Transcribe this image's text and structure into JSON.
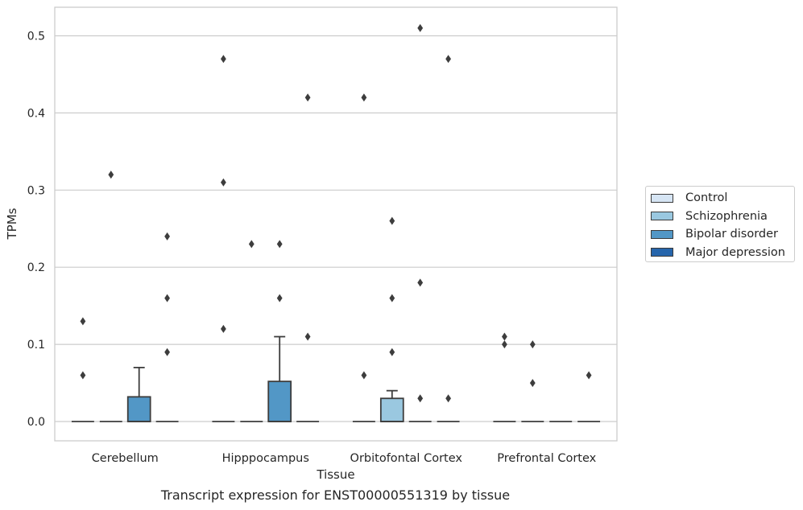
{
  "caption": "Transcript expression for ENST00000551319 by tissue",
  "legend": {
    "items": [
      {
        "label": "Control",
        "color": "#d6e5f4"
      },
      {
        "label": "Schizophrenia",
        "color": "#9ac8e0"
      },
      {
        "label": "Bipolar disorder",
        "color": "#5297c6"
      },
      {
        "label": "Major depression",
        "color": "#2665ab"
      }
    ]
  },
  "chart_data": {
    "type": "box",
    "title": "",
    "xlabel": "Tissue",
    "ylabel": "TPMs",
    "ylim": [
      -0.025,
      0.537
    ],
    "yticks": [
      0.0,
      0.1,
      0.2,
      0.3,
      0.4,
      0.5
    ],
    "ytick_labels": [
      "0.0",
      "0.1",
      "0.2",
      "0.3",
      "0.4",
      "0.5"
    ],
    "grid": true,
    "legend_position": "right",
    "categories": [
      "Cerebellum",
      "Hipppocampus",
      "Orbitofontal Cortex",
      "Prefrontal Cortex"
    ],
    "series": [
      {
        "name": "Control",
        "color": "#d6e5f4",
        "boxes": [
          {
            "q1": 0,
            "median": 0,
            "q3": 0,
            "whisker_low": 0,
            "whisker_high": 0,
            "outliers": [
              0.06,
              0.13
            ]
          },
          {
            "q1": 0,
            "median": 0,
            "q3": 0,
            "whisker_low": 0,
            "whisker_high": 0,
            "outliers": [
              0.12,
              0.31,
              0.47
            ]
          },
          {
            "q1": 0,
            "median": 0,
            "q3": 0,
            "whisker_low": 0,
            "whisker_high": 0,
            "outliers": [
              0.06,
              0.42
            ]
          },
          {
            "q1": 0,
            "median": 0,
            "q3": 0,
            "whisker_low": 0,
            "whisker_high": 0,
            "outliers": [
              0.1,
              0.11
            ]
          }
        ]
      },
      {
        "name": "Schizophrenia",
        "color": "#9ac8e0",
        "boxes": [
          {
            "q1": 0,
            "median": 0,
            "q3": 0,
            "whisker_low": 0,
            "whisker_high": 0,
            "outliers": [
              0.32
            ]
          },
          {
            "q1": 0,
            "median": 0,
            "q3": 0,
            "whisker_low": 0,
            "whisker_high": 0,
            "outliers": [
              0.23
            ]
          },
          {
            "q1": 0,
            "median": 0,
            "q3": 0.03,
            "whisker_low": 0,
            "whisker_high": 0.04,
            "outliers": [
              0.09,
              0.16,
              0.26
            ]
          },
          {
            "q1": 0,
            "median": 0,
            "q3": 0,
            "whisker_low": 0,
            "whisker_high": 0,
            "outliers": [
              0.05,
              0.1
            ]
          }
        ]
      },
      {
        "name": "Bipolar disorder",
        "color": "#5297c6",
        "boxes": [
          {
            "q1": 0,
            "median": 0,
            "q3": 0.032,
            "whisker_low": 0,
            "whisker_high": 0.07,
            "outliers": []
          },
          {
            "q1": 0,
            "median": 0,
            "q3": 0.052,
            "whisker_low": 0,
            "whisker_high": 0.11,
            "outliers": [
              0.16,
              0.23
            ]
          },
          {
            "q1": 0,
            "median": 0,
            "q3": 0,
            "whisker_low": 0,
            "whisker_high": 0,
            "outliers": [
              0.03,
              0.18,
              0.51
            ]
          },
          {
            "q1": 0,
            "median": 0,
            "q3": 0,
            "whisker_low": 0,
            "whisker_high": 0,
            "outliers": []
          }
        ]
      },
      {
        "name": "Major depression",
        "color": "#2665ab",
        "boxes": [
          {
            "q1": 0,
            "median": 0,
            "q3": 0,
            "whisker_low": 0,
            "whisker_high": 0,
            "outliers": [
              0.09,
              0.16,
              0.24
            ]
          },
          {
            "q1": 0,
            "median": 0,
            "q3": 0,
            "whisker_low": 0,
            "whisker_high": 0,
            "outliers": [
              0.11,
              0.42
            ]
          },
          {
            "q1": 0,
            "median": 0,
            "q3": 0,
            "whisker_low": 0,
            "whisker_high": 0,
            "outliers": [
              0.03,
              0.47
            ]
          },
          {
            "q1": 0,
            "median": 0,
            "q3": 0,
            "whisker_low": 0,
            "whisker_high": 0,
            "outliers": [
              0.06
            ]
          }
        ]
      }
    ]
  }
}
